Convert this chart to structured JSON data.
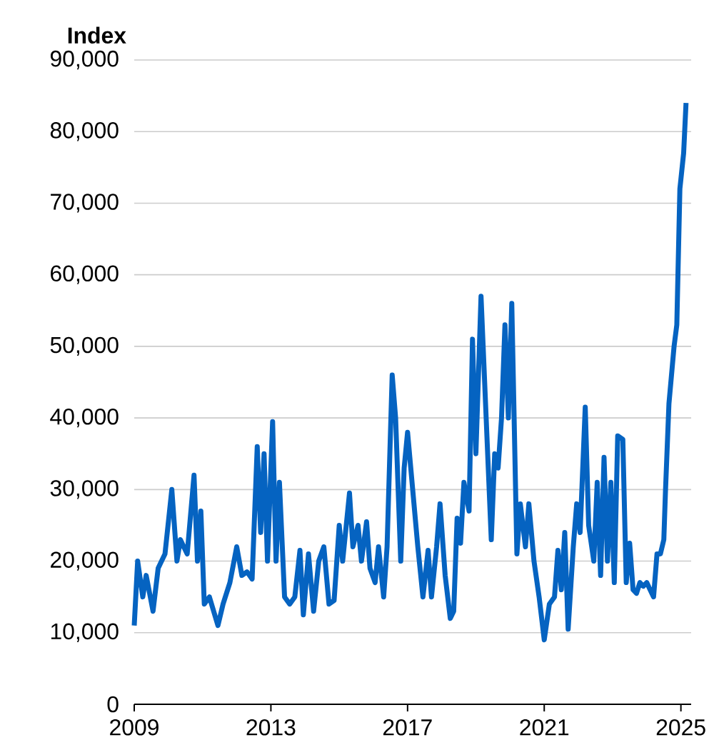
{
  "chart_data": {
    "type": "line",
    "ylabel": "Index",
    "color": "#0563c1",
    "x": [
      2009.0,
      2009.1,
      2009.25,
      2009.35,
      2009.55,
      2009.7,
      2009.9,
      2010.1,
      2010.25,
      2010.35,
      2010.55,
      2010.75,
      2010.85,
      2010.95,
      2011.05,
      2011.2,
      2011.45,
      2011.6,
      2011.8,
      2012.0,
      2012.15,
      2012.3,
      2012.45,
      2012.6,
      2012.7,
      2012.8,
      2012.9,
      2013.05,
      2013.15,
      2013.25,
      2013.4,
      2013.55,
      2013.7,
      2013.85,
      2013.95,
      2014.1,
      2014.25,
      2014.4,
      2014.55,
      2014.7,
      2014.85,
      2015.0,
      2015.1,
      2015.3,
      2015.4,
      2015.55,
      2015.65,
      2015.8,
      2015.9,
      2016.05,
      2016.15,
      2016.3,
      2016.4,
      2016.55,
      2016.65,
      2016.8,
      2016.9,
      2017.0,
      2017.15,
      2017.3,
      2017.45,
      2017.6,
      2017.7,
      2017.85,
      2017.95,
      2018.1,
      2018.25,
      2018.35,
      2018.45,
      2018.55,
      2018.65,
      2018.8,
      2018.9,
      2019.0,
      2019.15,
      2019.3,
      2019.45,
      2019.55,
      2019.65,
      2019.75,
      2019.85,
      2019.95,
      2020.05,
      2020.2,
      2020.3,
      2020.45,
      2020.55,
      2020.7,
      2020.85,
      2021.0,
      2021.15,
      2021.3,
      2021.4,
      2021.5,
      2021.6,
      2021.7,
      2021.85,
      2021.95,
      2022.05,
      2022.2,
      2022.3,
      2022.45,
      2022.55,
      2022.65,
      2022.75,
      2022.85,
      2022.95,
      2023.05,
      2023.15,
      2023.3,
      2023.4,
      2023.5,
      2023.6,
      2023.7,
      2023.8,
      2023.9,
      2024.0,
      2024.1,
      2024.2,
      2024.3,
      2024.4,
      2024.5,
      2024.55,
      2024.65,
      2024.8,
      2024.88,
      2024.97,
      2025.08,
      2025.15
    ],
    "values": [
      11000,
      20000,
      15000,
      18000,
      13000,
      19000,
      21000,
      30000,
      20000,
      23000,
      21000,
      32000,
      20000,
      27000,
      14000,
      15000,
      11000,
      14000,
      17000,
      22000,
      18000,
      18500,
      17500,
      36000,
      24000,
      35000,
      20000,
      39500,
      20000,
      31000,
      15000,
      14000,
      15000,
      21500,
      12500,
      21000,
      13000,
      20000,
      22000,
      14000,
      14500,
      25000,
      20000,
      29500,
      22000,
      25000,
      20000,
      25500,
      19000,
      17000,
      22000,
      15000,
      22000,
      46000,
      40000,
      20000,
      33000,
      38000,
      30000,
      22000,
      15000,
      21500,
      15000,
      22000,
      28000,
      18000,
      12000,
      13000,
      26000,
      22500,
      31000,
      27000,
      51000,
      35000,
      57000,
      40000,
      23000,
      35000,
      33000,
      40000,
      53000,
      40000,
      56000,
      21000,
      28000,
      22000,
      28000,
      20000,
      15000,
      9000,
      14000,
      15000,
      21500,
      16000,
      24000,
      10500,
      22000,
      28000,
      24000,
      41500,
      25000,
      20000,
      31000,
      18000,
      34500,
      20000,
      31000,
      17000,
      37500,
      37000,
      17000,
      22500,
      16000,
      15500,
      17000,
      16500,
      17000,
      16000,
      15000,
      21000,
      21000,
      23000,
      30000,
      42000,
      50000,
      53000,
      72000,
      77000,
      84000
    ],
    "xlim": [
      2009,
      2025.3
    ],
    "xticks": [
      2009,
      2013,
      2017,
      2021,
      2025
    ],
    "ylim": [
      0,
      90000
    ],
    "yticks": [
      {
        "value": 0,
        "label": "0"
      },
      {
        "value": 10000,
        "label": "10,000"
      },
      {
        "value": 20000,
        "label": "20,000"
      },
      {
        "value": 30000,
        "label": "30,000"
      },
      {
        "value": 40000,
        "label": "40,000"
      },
      {
        "value": 50000,
        "label": "50,000"
      },
      {
        "value": 60000,
        "label": "60,000"
      },
      {
        "value": 70000,
        "label": "70,000"
      },
      {
        "value": 80000,
        "label": "80,000"
      },
      {
        "value": 90000,
        "label": "90,000"
      }
    ],
    "grid": "y"
  }
}
